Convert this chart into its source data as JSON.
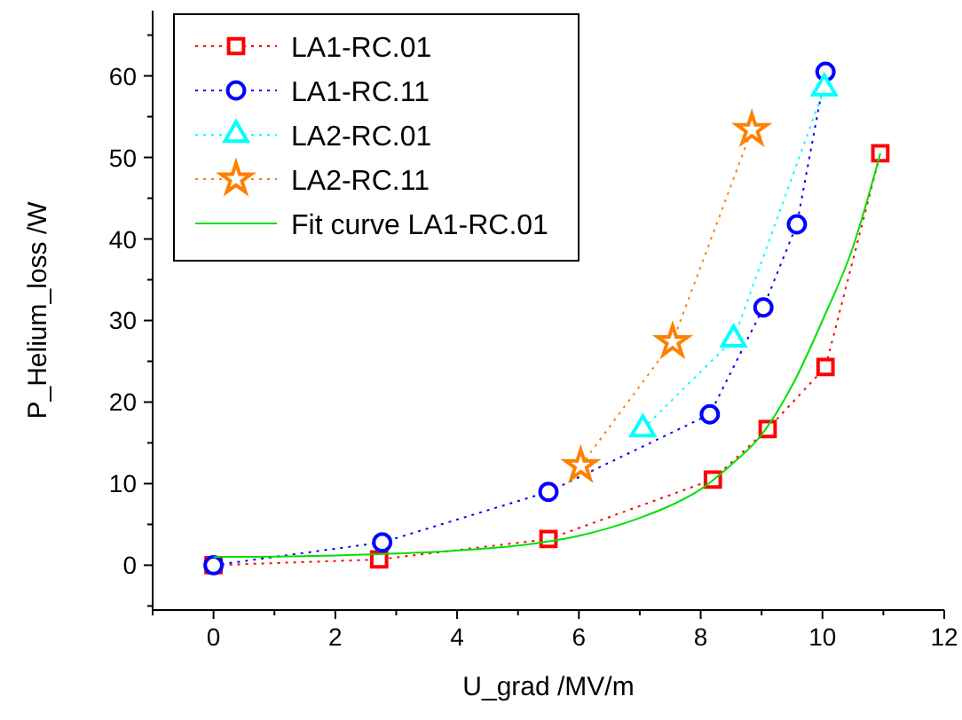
{
  "chart_data": {
    "type": "line",
    "xlabel": "U_grad  /MV/m",
    "ylabel": "P_Helium_loss /W",
    "xlim": [
      -1,
      12
    ],
    "ylim": [
      -5.5,
      68
    ],
    "xticks": [
      {
        "value": -1,
        "label": null
      },
      0,
      {
        "value": 1,
        "label": null
      },
      2,
      {
        "value": 3,
        "label": null
      },
      4,
      {
        "value": 5,
        "label": null
      },
      6,
      {
        "value": 7,
        "label": null
      },
      8,
      {
        "value": 9,
        "label": null
      },
      10,
      {
        "value": 11,
        "label": null
      },
      12
    ],
    "yticks": [
      {
        "value": -5,
        "label": null
      },
      0,
      {
        "value": 5,
        "label": null
      },
      10,
      {
        "value": 15,
        "label": null
      },
      20,
      {
        "value": 25,
        "label": null
      },
      30,
      {
        "value": 35,
        "label": null
      },
      40,
      {
        "value": 45,
        "label": null
      },
      50,
      {
        "value": 55,
        "label": null
      },
      60,
      {
        "value": 65,
        "label": null
      }
    ],
    "legend": "top left",
    "grid": false,
    "series": [
      {
        "name": "LA1-RC.01",
        "color": "#ff0000",
        "marker": "square",
        "line_style": "dotted",
        "x": [
          0,
          2.72,
          5.5,
          8.2,
          9.1,
          10.05,
          10.95
        ],
        "values": [
          0,
          0.7,
          3.2,
          10.5,
          16.7,
          24.3,
          50.5
        ]
      },
      {
        "name": "LA1-RC.11",
        "color": "#0000ff",
        "marker": "circle",
        "line_style": "dotted",
        "x": [
          0,
          2.77,
          5.5,
          8.15,
          9.03,
          9.58,
          10.05
        ],
        "values": [
          0,
          2.8,
          9,
          18.5,
          31.6,
          41.8,
          60.5
        ]
      },
      {
        "name": "LA2-RC.01",
        "color": "#00ffff",
        "marker": "triangle",
        "line_style": "dotted",
        "x": [
          7.05,
          8.54,
          10.03
        ],
        "values": [
          16.7,
          27.7,
          58.5
        ]
      },
      {
        "name": "LA2-RC.11",
        "color": "#ff8000",
        "marker": "star",
        "line_style": "dotted",
        "x": [
          6.03,
          7.54,
          8.84
        ],
        "values": [
          12.2,
          27.4,
          53.4
        ]
      },
      {
        "name": "Fit curve LA1-RC.01",
        "color": "#00e000",
        "marker": "none",
        "line_style": "solid",
        "x": [
          0,
          2,
          4,
          5,
          6,
          7,
          7.5,
          8,
          8.5,
          9,
          9.5,
          10,
          10.5,
          10.95
        ],
        "values": [
          1,
          1.2,
          1.8,
          2.4,
          3.6,
          5.8,
          7.3,
          9.3,
          12.3,
          16,
          22,
          30,
          39,
          50.5
        ]
      }
    ]
  }
}
